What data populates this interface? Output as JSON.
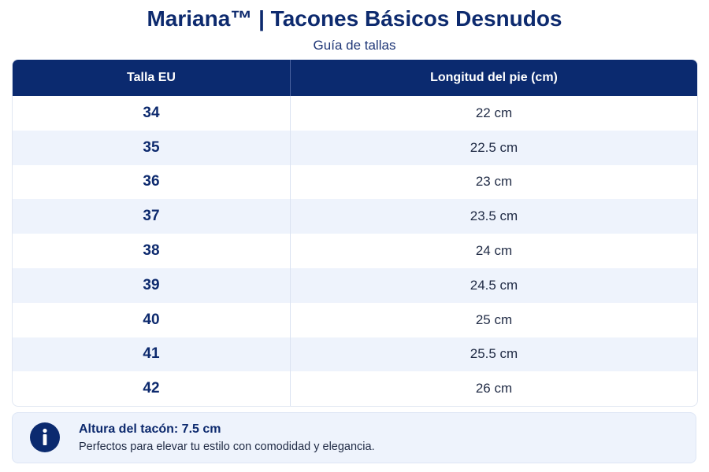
{
  "header": {
    "title": "Mariana™ | Tacones Básicos Desnudos",
    "subtitle": "Guía de tallas"
  },
  "table": {
    "columns": [
      "Talla EU",
      "Longitud del pie (cm)"
    ],
    "rows": [
      [
        "34",
        "22 cm"
      ],
      [
        "35",
        "22.5 cm"
      ],
      [
        "36",
        "23 cm"
      ],
      [
        "37",
        "23.5 cm"
      ],
      [
        "38",
        "24 cm"
      ],
      [
        "39",
        "24.5 cm"
      ],
      [
        "40",
        "25 cm"
      ],
      [
        "41",
        "25.5 cm"
      ],
      [
        "42",
        "26 cm"
      ]
    ]
  },
  "note": {
    "title": "Altura del tacón: 7.5 cm",
    "text": "Perfectos para elevar tu estilo con comodidad y elegancia."
  }
}
